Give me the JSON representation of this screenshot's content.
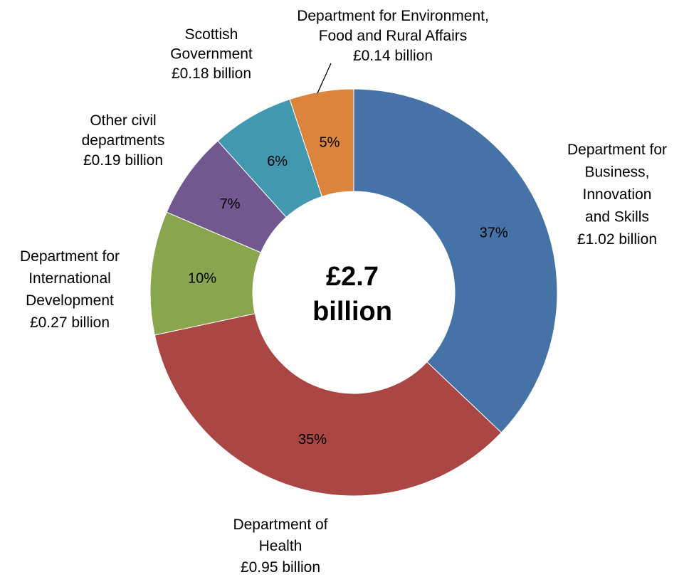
{
  "chart_data": {
    "type": "pie",
    "variant": "donut",
    "center_label": [
      "£2.7",
      "billion"
    ],
    "slices": [
      {
        "label": [
          "Department for",
          "Business,",
          "Innovation",
          "and Skills"
        ],
        "value_label": "£1.02 billion",
        "value": 1.02,
        "percent_label": "37%",
        "color": "#4572A7"
      },
      {
        "label": [
          "Department of",
          "Health"
        ],
        "value_label": "£0.95 billion",
        "value": 0.95,
        "percent_label": "35%",
        "color": "#AA4643"
      },
      {
        "label": [
          "Department for",
          "International",
          "Development"
        ],
        "value_label": "£0.27 billion",
        "value": 0.27,
        "percent_label": "10%",
        "color": "#89A54E"
      },
      {
        "label": [
          "Other civil",
          "departments"
        ],
        "value_label": "£0.19 billion",
        "value": 0.19,
        "percent_label": "7%",
        "color": "#71588F"
      },
      {
        "label": [
          "Scottish",
          "Government"
        ],
        "value_label": "£0.18 billion",
        "value": 0.18,
        "percent_label": "6%",
        "color": "#4198AF"
      },
      {
        "label": [
          "Department for  Environment,",
          "Food and Rural Affairs"
        ],
        "value_label": "£0.14 billion",
        "value": 0.14,
        "percent_label": "5%",
        "color": "#DB843D"
      }
    ]
  }
}
